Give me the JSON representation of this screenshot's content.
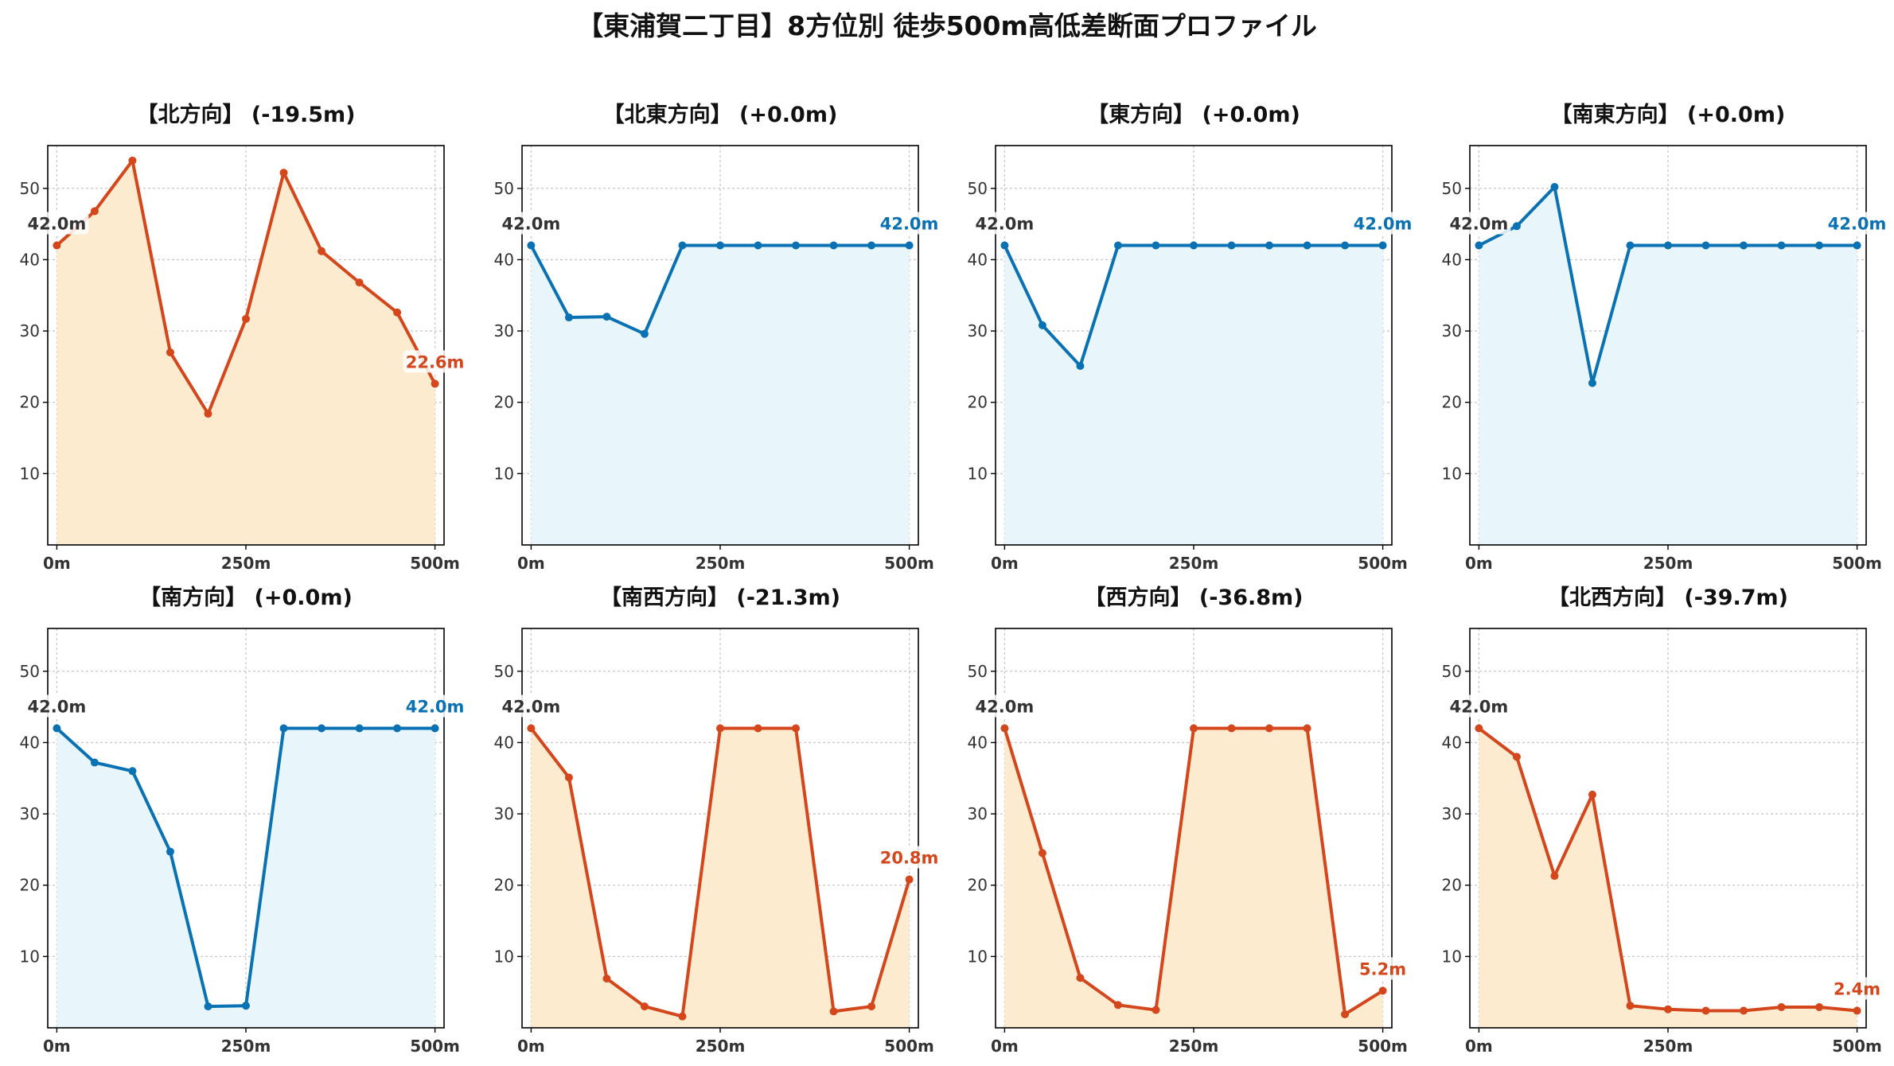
{
  "title": "【東浦賀二丁目】8方位別 徒歩500m高低差断面プロファイル",
  "colors": {
    "down_line": "#d4461c",
    "down_fill": "#fdebd0",
    "up_line": "#0a72b3",
    "up_fill": "#e8f6fc",
    "start_label": "#333333",
    "grid": "#c8c8c8",
    "axis": "#000000",
    "tick_text": "#333333"
  },
  "chart_data": [
    {
      "type": "area",
      "title": "【北方向】 (-19.5m)",
      "trend": "down",
      "x": [
        0,
        50,
        100,
        150,
        200,
        250,
        300,
        350,
        400,
        450,
        500
      ],
      "values": [
        42.0,
        46.8,
        53.9,
        27.0,
        18.4,
        31.7,
        52.2,
        41.2,
        36.8,
        32.6,
        22.6
      ],
      "start_label": "42.0m",
      "end_label": "22.6m",
      "xlim": [
        -12,
        512
      ],
      "ylim": [
        0,
        56
      ],
      "xticks": [
        0,
        250,
        500
      ],
      "xtick_labels": [
        "0m",
        "250m",
        "500m"
      ],
      "yticks": [
        10,
        20,
        30,
        40,
        50
      ],
      "ytick_labels": [
        "10",
        "20",
        "30",
        "40",
        "50"
      ],
      "grid": true
    },
    {
      "type": "area",
      "title": "【北東方向】 (+0.0m)",
      "trend": "flat",
      "x": [
        0,
        50,
        100,
        150,
        200,
        250,
        300,
        350,
        400,
        450,
        500
      ],
      "values": [
        42.0,
        31.9,
        32.0,
        29.6,
        42.0,
        42.0,
        42.0,
        42.0,
        42.0,
        42.0,
        42.0
      ],
      "start_label": "42.0m",
      "end_label": "42.0m",
      "xlim": [
        -12,
        512
      ],
      "ylim": [
        0,
        56
      ],
      "xticks": [
        0,
        250,
        500
      ],
      "xtick_labels": [
        "0m",
        "250m",
        "500m"
      ],
      "yticks": [
        10,
        20,
        30,
        40,
        50
      ],
      "ytick_labels": [
        "10",
        "20",
        "30",
        "40",
        "50"
      ],
      "grid": true
    },
    {
      "type": "area",
      "title": "【東方向】 (+0.0m)",
      "trend": "flat",
      "x": [
        0,
        50,
        100,
        150,
        200,
        250,
        300,
        350,
        400,
        450,
        500
      ],
      "values": [
        42.0,
        30.8,
        25.1,
        42.0,
        42.0,
        42.0,
        42.0,
        42.0,
        42.0,
        42.0,
        42.0
      ],
      "start_label": "42.0m",
      "end_label": "42.0m",
      "xlim": [
        -12,
        512
      ],
      "ylim": [
        0,
        56
      ],
      "xticks": [
        0,
        250,
        500
      ],
      "xtick_labels": [
        "0m",
        "250m",
        "500m"
      ],
      "yticks": [
        10,
        20,
        30,
        40,
        50
      ],
      "ytick_labels": [
        "10",
        "20",
        "30",
        "40",
        "50"
      ],
      "grid": true
    },
    {
      "type": "area",
      "title": "【南東方向】 (+0.0m)",
      "trend": "flat",
      "x": [
        0,
        50,
        100,
        150,
        200,
        250,
        300,
        350,
        400,
        450,
        500
      ],
      "values": [
        42.0,
        44.7,
        50.2,
        22.7,
        42.0,
        42.0,
        42.0,
        42.0,
        42.0,
        42.0,
        42.0
      ],
      "start_label": "42.0m",
      "end_label": "42.0m",
      "xlim": [
        -12,
        512
      ],
      "ylim": [
        0,
        56
      ],
      "xticks": [
        0,
        250,
        500
      ],
      "xtick_labels": [
        "0m",
        "250m",
        "500m"
      ],
      "yticks": [
        10,
        20,
        30,
        40,
        50
      ],
      "ytick_labels": [
        "10",
        "20",
        "30",
        "40",
        "50"
      ],
      "grid": true
    },
    {
      "type": "area",
      "title": "【南方向】 (+0.0m)",
      "trend": "flat",
      "x": [
        0,
        50,
        100,
        150,
        200,
        250,
        300,
        350,
        400,
        450,
        500
      ],
      "values": [
        42.0,
        37.2,
        36.0,
        24.7,
        3.0,
        3.1,
        42.0,
        42.0,
        42.0,
        42.0,
        42.0
      ],
      "start_label": "42.0m",
      "end_label": "42.0m",
      "xlim": [
        -12,
        512
      ],
      "ylim": [
        0,
        56
      ],
      "xticks": [
        0,
        250,
        500
      ],
      "xtick_labels": [
        "0m",
        "250m",
        "500m"
      ],
      "yticks": [
        10,
        20,
        30,
        40,
        50
      ],
      "ytick_labels": [
        "10",
        "20",
        "30",
        "40",
        "50"
      ],
      "grid": true
    },
    {
      "type": "area",
      "title": "【南西方向】 (-21.3m)",
      "trend": "down",
      "x": [
        0,
        50,
        100,
        150,
        200,
        250,
        300,
        350,
        400,
        450,
        500
      ],
      "values": [
        42.0,
        35.1,
        6.9,
        3.0,
        1.6,
        42.0,
        42.0,
        42.0,
        2.3,
        3.0,
        20.8
      ],
      "start_label": "42.0m",
      "end_label": "20.8m",
      "xlim": [
        -12,
        512
      ],
      "ylim": [
        0,
        56
      ],
      "xticks": [
        0,
        250,
        500
      ],
      "xtick_labels": [
        "0m",
        "250m",
        "500m"
      ],
      "yticks": [
        10,
        20,
        30,
        40,
        50
      ],
      "ytick_labels": [
        "10",
        "20",
        "30",
        "40",
        "50"
      ],
      "grid": true
    },
    {
      "type": "area",
      "title": "【西方向】 (-36.8m)",
      "trend": "down",
      "x": [
        0,
        50,
        100,
        150,
        200,
        250,
        300,
        350,
        400,
        450,
        500
      ],
      "values": [
        42.0,
        24.5,
        7.0,
        3.2,
        2.5,
        42.0,
        42.0,
        42.0,
        42.0,
        1.9,
        5.2
      ],
      "start_label": "42.0m",
      "end_label": "5.2m",
      "xlim": [
        -12,
        512
      ],
      "ylim": [
        0,
        56
      ],
      "xticks": [
        0,
        250,
        500
      ],
      "xtick_labels": [
        "0m",
        "250m",
        "500m"
      ],
      "yticks": [
        10,
        20,
        30,
        40,
        50
      ],
      "ytick_labels": [
        "10",
        "20",
        "30",
        "40",
        "50"
      ],
      "grid": true
    },
    {
      "type": "area",
      "title": "【北西方向】 (-39.7m)",
      "trend": "down",
      "x": [
        0,
        50,
        100,
        150,
        200,
        250,
        300,
        350,
        400,
        450,
        500
      ],
      "values": [
        42.0,
        38.0,
        21.3,
        32.7,
        3.1,
        2.6,
        2.4,
        2.4,
        2.9,
        2.9,
        2.4
      ],
      "start_label": "42.0m",
      "end_label": "2.4m",
      "xlim": [
        -12,
        512
      ],
      "ylim": [
        0,
        56
      ],
      "xticks": [
        0,
        250,
        500
      ],
      "xtick_labels": [
        "0m",
        "250m",
        "500m"
      ],
      "yticks": [
        10,
        20,
        30,
        40,
        50
      ],
      "ytick_labels": [
        "10",
        "20",
        "30",
        "40",
        "50"
      ],
      "grid": true
    }
  ]
}
